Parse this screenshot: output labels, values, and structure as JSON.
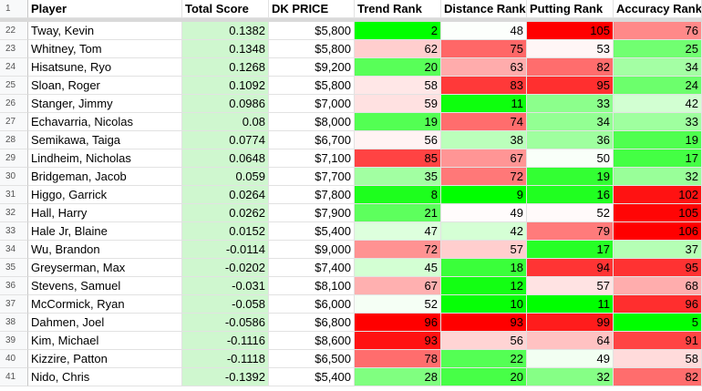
{
  "header": {
    "row_number": "1",
    "player": "Player",
    "total_score": "Total Score",
    "dk_price": "DK PRICE",
    "trend_rank": "Trend Rank",
    "distance_rank": "Distance Rank",
    "putting_rank": "Putting Rank",
    "accuracy_rank": "Accuracy Rank"
  },
  "colors": {
    "best": "#00ff00",
    "worst": "#ff0000",
    "mid": "#ffffff",
    "total_score_fill": "#cff7cf"
  },
  "rows": [
    {
      "row": "22",
      "player": "Tway, Kevin",
      "total": "0.1382",
      "price": "$5,800",
      "trend": "2",
      "distance": "48",
      "putting": "105",
      "accuracy": "76"
    },
    {
      "row": "23",
      "player": "Whitney, Tom",
      "total": "0.1348",
      "price": "$5,800",
      "trend": "62",
      "distance": "75",
      "putting": "53",
      "accuracy": "25"
    },
    {
      "row": "24",
      "player": "Hisatsune, Ryo",
      "total": "0.1268",
      "price": "$9,200",
      "trend": "20",
      "distance": "63",
      "putting": "82",
      "accuracy": "34"
    },
    {
      "row": "25",
      "player": "Sloan, Roger",
      "total": "0.1092",
      "price": "$5,800",
      "trend": "58",
      "distance": "83",
      "putting": "95",
      "accuracy": "24"
    },
    {
      "row": "26",
      "player": "Stanger, Jimmy",
      "total": "0.0986",
      "price": "$7,000",
      "trend": "59",
      "distance": "11",
      "putting": "33",
      "accuracy": "42"
    },
    {
      "row": "27",
      "player": "Echavarria, Nicolas",
      "total": "0.08",
      "price": "$8,000",
      "trend": "19",
      "distance": "74",
      "putting": "34",
      "accuracy": "33"
    },
    {
      "row": "28",
      "player": "Semikawa, Taiga",
      "total": "0.0774",
      "price": "$6,700",
      "trend": "56",
      "distance": "38",
      "putting": "36",
      "accuracy": "19"
    },
    {
      "row": "29",
      "player": "Lindheim, Nicholas",
      "total": "0.0648",
      "price": "$7,100",
      "trend": "85",
      "distance": "67",
      "putting": "50",
      "accuracy": "17"
    },
    {
      "row": "30",
      "player": "Bridgeman, Jacob",
      "total": "0.059",
      "price": "$7,700",
      "trend": "35",
      "distance": "72",
      "putting": "19",
      "accuracy": "32"
    },
    {
      "row": "31",
      "player": "Higgo, Garrick",
      "total": "0.0264",
      "price": "$7,800",
      "trend": "8",
      "distance": "9",
      "putting": "16",
      "accuracy": "102"
    },
    {
      "row": "32",
      "player": "Hall, Harry",
      "total": "0.0262",
      "price": "$7,900",
      "trend": "21",
      "distance": "49",
      "putting": "52",
      "accuracy": "105"
    },
    {
      "row": "33",
      "player": "Hale Jr, Blaine",
      "total": "0.0152",
      "price": "$5,400",
      "trend": "47",
      "distance": "42",
      "putting": "79",
      "accuracy": "106"
    },
    {
      "row": "34",
      "player": "Wu, Brandon",
      "total": "-0.0114",
      "price": "$9,000",
      "trend": "72",
      "distance": "57",
      "putting": "17",
      "accuracy": "37"
    },
    {
      "row": "35",
      "player": "Greyserman, Max",
      "total": "-0.0202",
      "price": "$7,400",
      "trend": "45",
      "distance": "18",
      "putting": "94",
      "accuracy": "95"
    },
    {
      "row": "36",
      "player": "Stevens, Samuel",
      "total": "-0.031",
      "price": "$8,100",
      "trend": "67",
      "distance": "12",
      "putting": "57",
      "accuracy": "68"
    },
    {
      "row": "37",
      "player": "McCormick, Ryan",
      "total": "-0.058",
      "price": "$6,000",
      "trend": "52",
      "distance": "10",
      "putting": "11",
      "accuracy": "96"
    },
    {
      "row": "38",
      "player": "Dahmen, Joel",
      "total": "-0.0586",
      "price": "$6,800",
      "trend": "96",
      "distance": "93",
      "putting": "99",
      "accuracy": "5"
    },
    {
      "row": "39",
      "player": "Kim, Michael",
      "total": "-0.1116",
      "price": "$8,600",
      "trend": "93",
      "distance": "56",
      "putting": "64",
      "accuracy": "91"
    },
    {
      "row": "40",
      "player": "Kizzire, Patton",
      "total": "-0.1118",
      "price": "$6,500",
      "trend": "78",
      "distance": "22",
      "putting": "49",
      "accuracy": "58"
    },
    {
      "row": "41",
      "player": "Nido, Chris",
      "total": "-0.1392",
      "price": "$5,400",
      "trend": "28",
      "distance": "20",
      "putting": "32",
      "accuracy": "82"
    }
  ]
}
